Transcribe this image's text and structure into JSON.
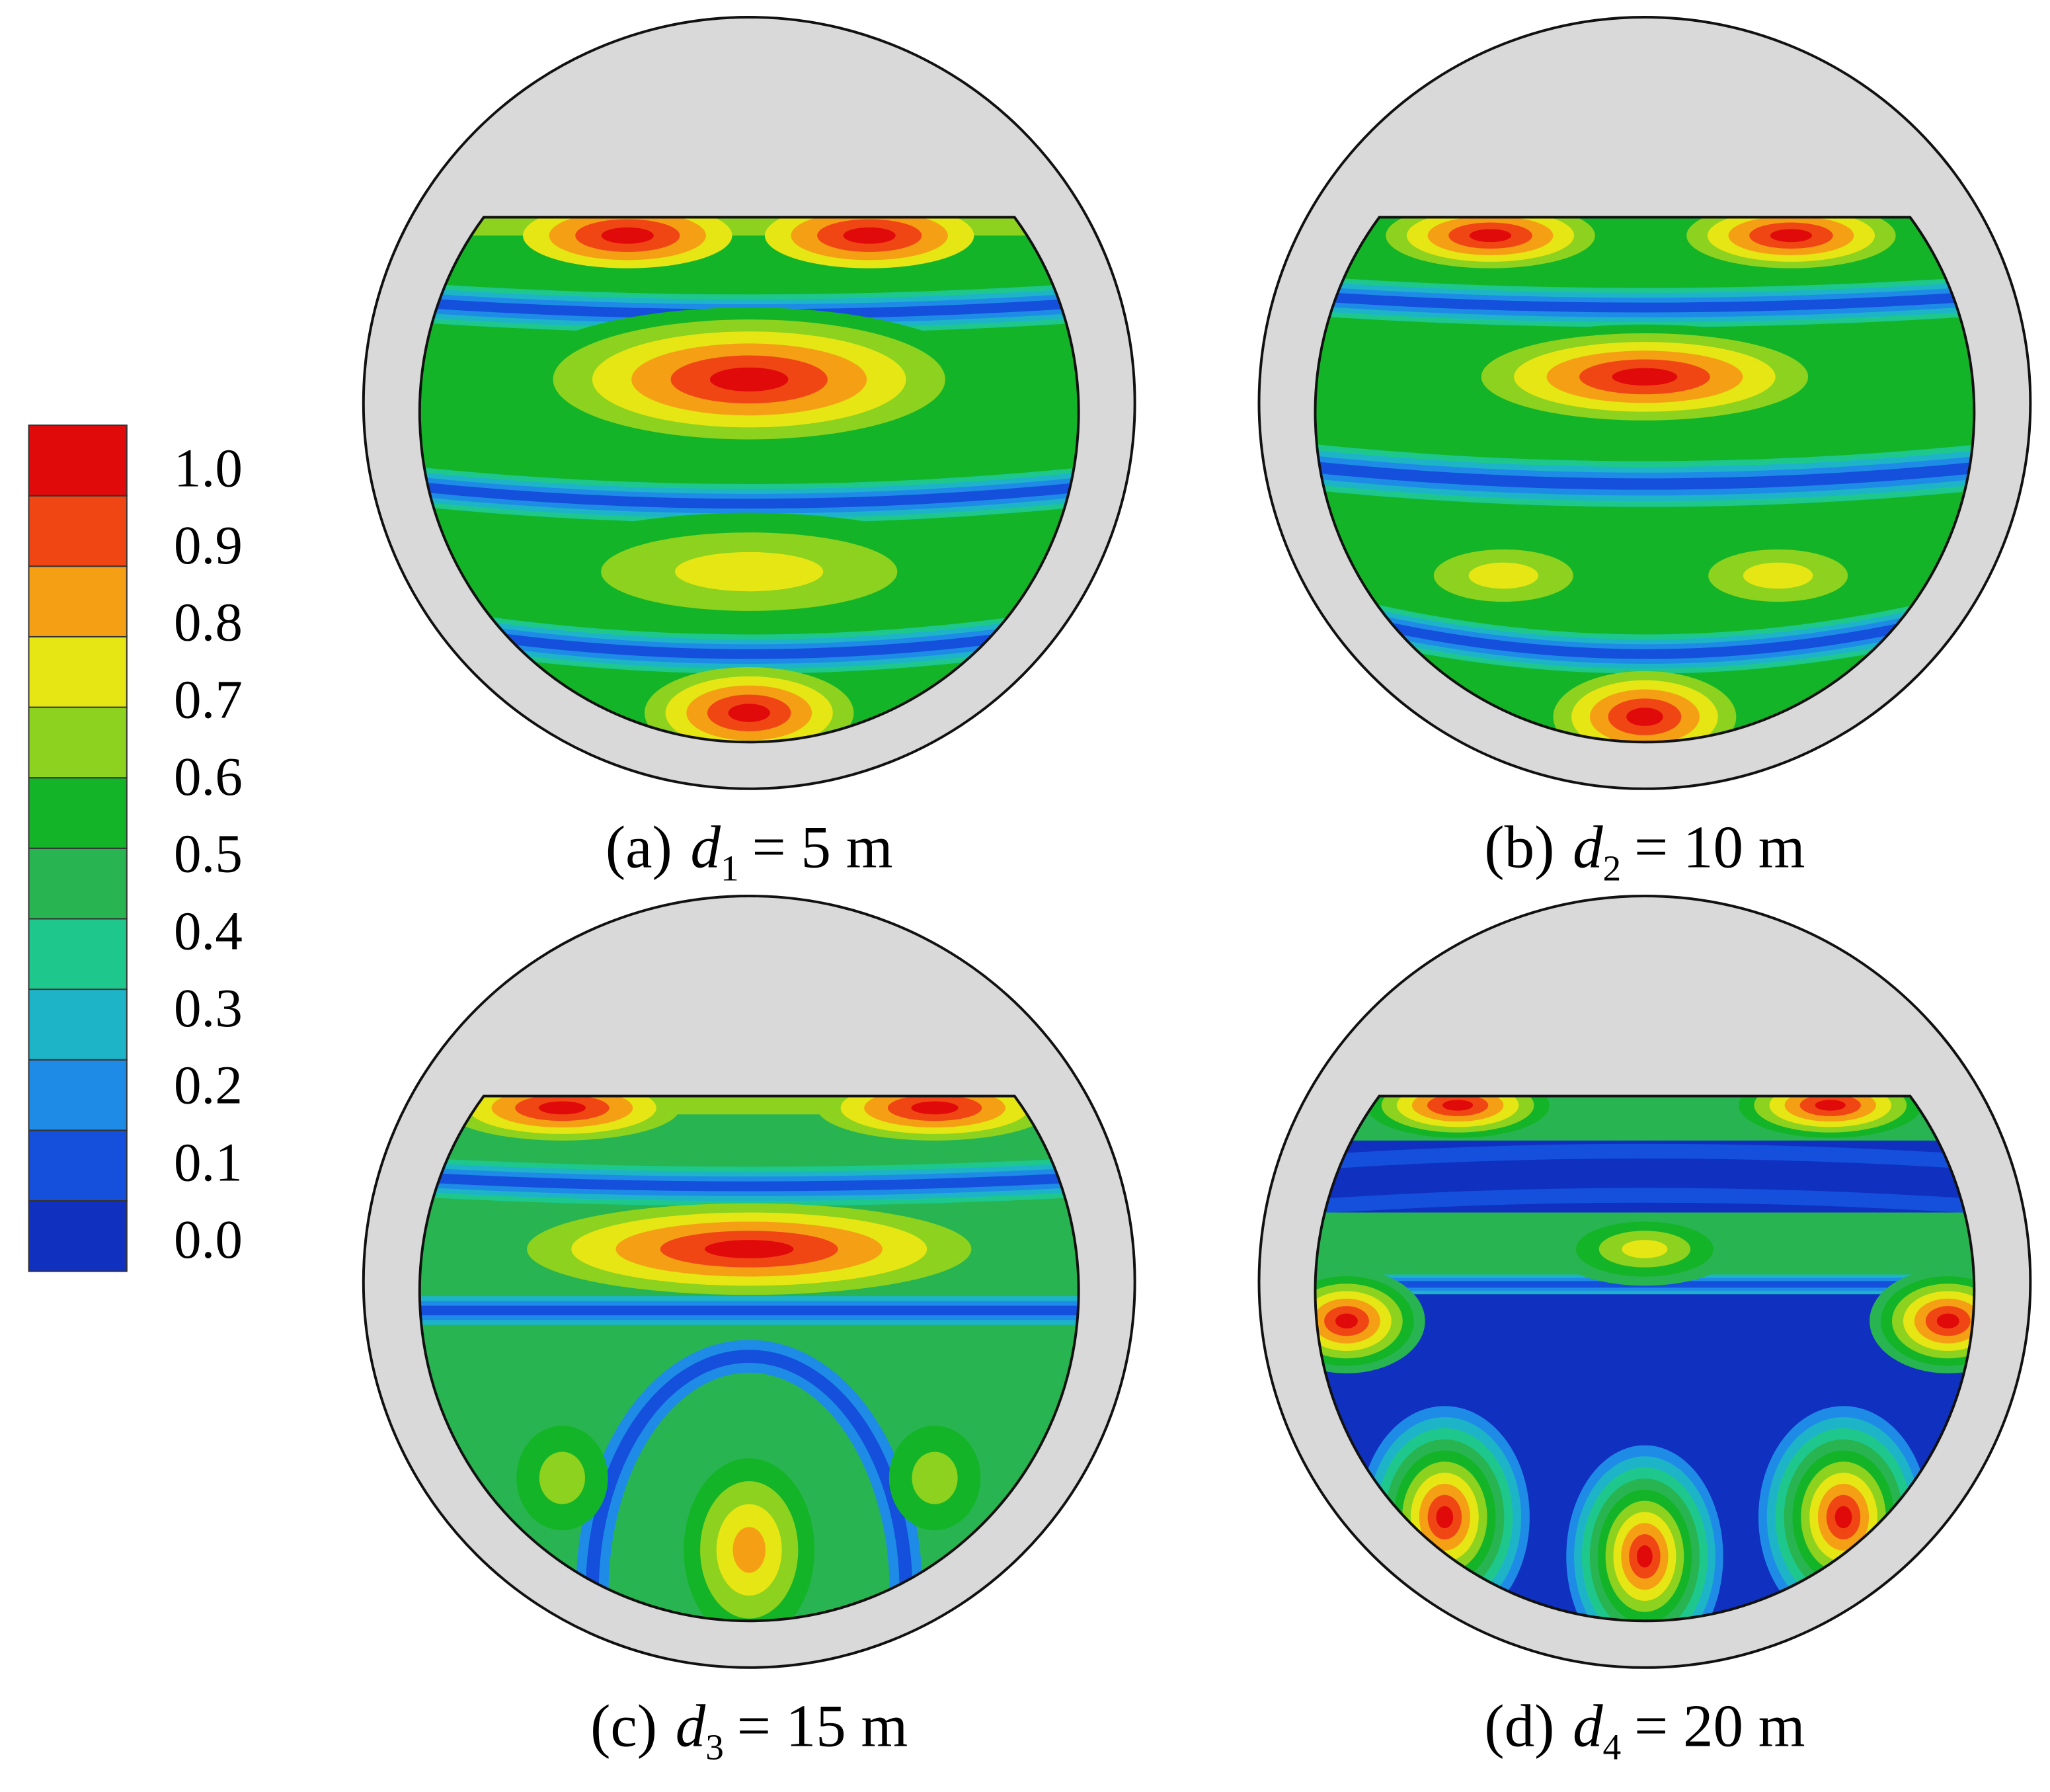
{
  "chart_data": {
    "type": "contour",
    "colorbar": {
      "colors": [
        "#1030c0",
        "#1450dc",
        "#1e8ce6",
        "#1eb4c8",
        "#1ec88c",
        "#28b450",
        "#14b428",
        "#8cd21e",
        "#e6e614",
        "#f5a014",
        "#f04614",
        "#e00a0a"
      ],
      "ticks": [
        {
          "value": 0,
          "label": "0.0"
        },
        {
          "value": 0.1,
          "label": "0.1"
        },
        {
          "value": 0.2,
          "label": "0.2"
        },
        {
          "value": 0.3,
          "label": "0.3"
        },
        {
          "value": 0.4,
          "label": "0.4"
        },
        {
          "value": 0.5,
          "label": "0.5"
        },
        {
          "value": 0.6,
          "label": "0.6"
        },
        {
          "value": 0.7,
          "label": "0.7"
        },
        {
          "value": 0.8,
          "label": "0.8"
        },
        {
          "value": 0.9,
          "label": "0.9"
        },
        {
          "value": 1,
          "label": "1.0"
        }
      ],
      "lim": [
        -0.05,
        1.05
      ]
    },
    "panels": [
      {
        "label": "(a)",
        "symbol": "d",
        "subscript": "1",
        "text": "= 5 m"
      },
      {
        "label": "(b)",
        "symbol": "d",
        "subscript": "2",
        "text": "= 10 m"
      },
      {
        "label": "(c)",
        "symbol": "d",
        "subscript": "3",
        "text": "= 15 m"
      },
      {
        "label": "(d)",
        "symbol": "d",
        "subscript": "4",
        "text": "= 20 m"
      }
    ]
  }
}
